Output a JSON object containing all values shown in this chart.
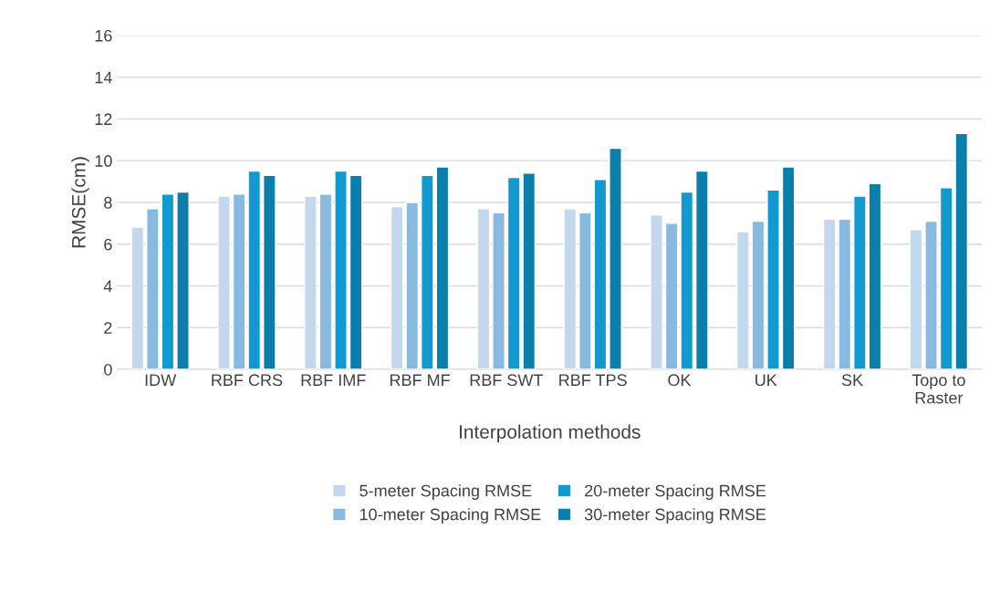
{
  "chart_data": {
    "type": "bar",
    "xlabel": "Interpolation methods",
    "ylabel": "RMSE(cm)",
    "categories": [
      "IDW",
      "RBF CRS",
      "RBF IMF",
      "RBF MF",
      "RBF SWT",
      "RBF TPS",
      "OK",
      "UK",
      "SK",
      "Topo to\nRaster"
    ],
    "series": [
      {
        "name": "5-meter Spacing RMSE",
        "color": "#c3d8ec",
        "values": [
          6.8,
          8.3,
          8.3,
          7.8,
          7.7,
          7.7,
          7.4,
          6.6,
          7.2,
          6.7
        ]
      },
      {
        "name": "10-meter Spacing RMSE",
        "color": "#88b9e0",
        "values": [
          7.7,
          8.4,
          8.4,
          8.0,
          7.5,
          7.5,
          7.0,
          7.1,
          7.2,
          7.1
        ]
      },
      {
        "name": "20-meter Spacing RMSE",
        "color": "#1199d0",
        "values": [
          8.4,
          9.5,
          9.5,
          9.3,
          9.2,
          9.1,
          8.5,
          8.6,
          8.3,
          8.7
        ]
      },
      {
        "name": "30-meter Spacing RMSE",
        "color": "#0b7fab",
        "values": [
          8.5,
          9.3,
          9.3,
          9.7,
          9.4,
          10.6,
          9.5,
          9.7,
          8.9,
          11.3
        ]
      }
    ],
    "ylim": [
      0,
      16
    ],
    "yticks": [
      0,
      2,
      4,
      6,
      8,
      10,
      12,
      14,
      16
    ],
    "grid": "y",
    "legend": "bottom"
  }
}
